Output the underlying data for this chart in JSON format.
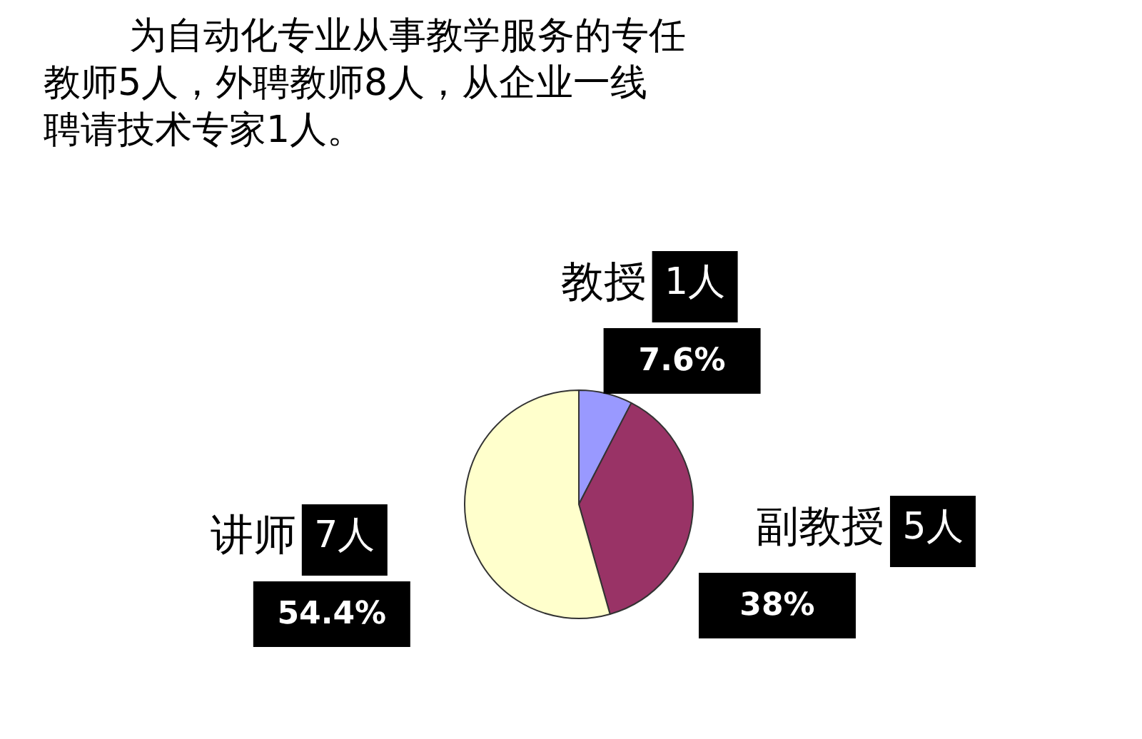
{
  "chart_data": {
    "type": "pie",
    "title": "为自动化专业从事教学服务的专任教师5人，外聘教师8人，从企业一线聘请技术专家1人。",
    "categories": [
      "教授",
      "副教授",
      "讲师"
    ],
    "values": [
      7.6,
      38,
      54.4
    ],
    "colors": [
      "#9999ff",
      "#993366",
      "#ffffcc"
    ],
    "value_labels": [
      "7.6%",
      "38%",
      "54.4%"
    ],
    "annotations": [
      "1人",
      "5人",
      "7人"
    ]
  }
}
